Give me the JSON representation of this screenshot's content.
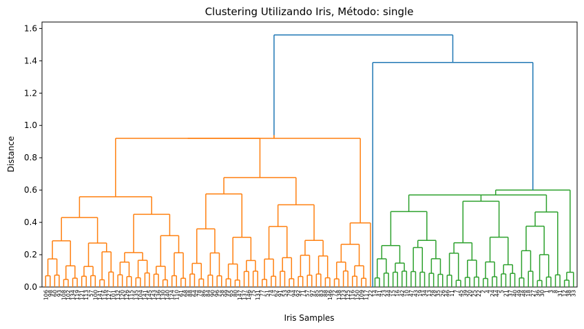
{
  "chart_data": {
    "type": "dendrogram",
    "title": "Clustering Utilizando Iris, Método: single",
    "xlabel": "Iris Samples",
    "ylabel": "Distance",
    "ylim": [
      0,
      1.64
    ],
    "yticks": [
      "0.0",
      "0.2",
      "0.4",
      "0.6",
      "0.8",
      "1.0",
      "1.2",
      "1.4",
      "1.6"
    ],
    "grid": false,
    "colors": {
      "cluster_orange": "#ff7f0e",
      "cluster_green": "#2ca02c",
      "top_blue": "#1f77b4"
    },
    "top_merges": [
      {
        "height": 1.56,
        "between": [
          "orange-cluster",
          "blue-subtree"
        ]
      },
      {
        "height": 1.39,
        "between": [
          "green-cluster",
          "small-outlier"
        ]
      },
      {
        "height": 0.94,
        "between": [
          "orange-left",
          "orange-right"
        ]
      },
      {
        "height": 0.6,
        "between": [
          "green-left",
          "green-right"
        ]
      }
    ],
    "leaf_labels_orange": [
      "106",
      "98",
      "60",
      "93",
      "108",
      "102",
      "134",
      "119",
      "121",
      "113",
      "57",
      "100",
      "141",
      "116",
      "127",
      "101",
      "132",
      "120",
      "126",
      "115",
      "135",
      "104",
      "141",
      "145",
      "143",
      "136",
      "130",
      "140",
      "124",
      "110",
      "61",
      "68",
      "88",
      "64",
      "78",
      "86",
      "84",
      "90",
      "96",
      "58",
      "99",
      "65",
      "80",
      "147",
      "137",
      "146",
      "75",
      "131",
      "77",
      "51",
      "74",
      "62",
      "91",
      "53",
      "79",
      "94",
      "92",
      "71",
      "57",
      "97",
      "85",
      "83",
      "88",
      "146",
      "72",
      "138",
      "123",
      "125",
      "116",
      "150",
      "109",
      "117",
      "22"
    ],
    "leaf_labels_green": [
      "14",
      "41",
      "23",
      "44",
      "15",
      "16",
      "42",
      "10",
      "47",
      "43",
      "19",
      "34",
      "13",
      "28",
      "35",
      "26",
      "46",
      "11",
      "7",
      "45",
      "39",
      "20",
      "25",
      "22",
      "2",
      "4",
      "24",
      "44",
      "5",
      "21",
      "37",
      "40",
      "49",
      "48",
      "18",
      "27",
      "36",
      "30",
      "1",
      "3",
      "8",
      "31",
      "12",
      "38",
      "33"
    ]
  }
}
